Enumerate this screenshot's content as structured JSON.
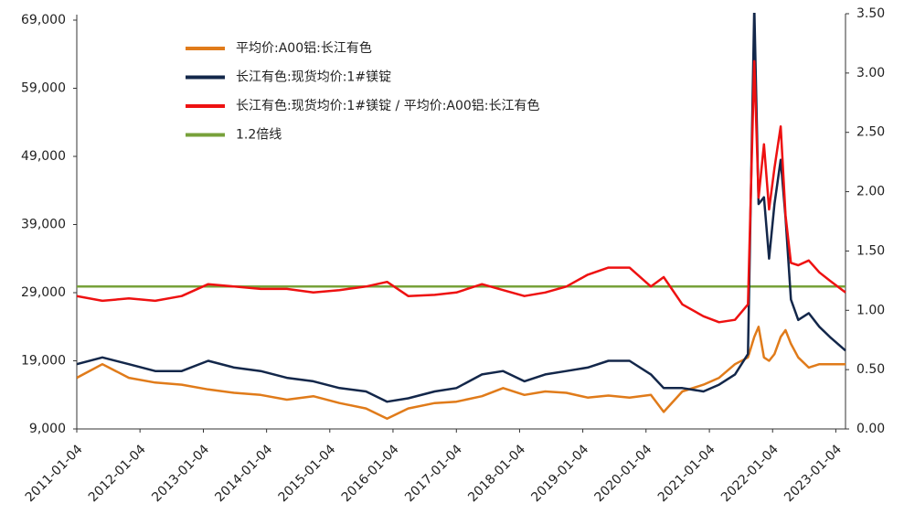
{
  "chart_data": {
    "type": "line",
    "x": [
      "2011-01-04",
      "2011-06-01",
      "2011-11-01",
      "2012-04-01",
      "2012-09-01",
      "2013-02-01",
      "2013-07-01",
      "2013-12-01",
      "2014-05-01",
      "2014-10-01",
      "2015-03-01",
      "2015-08-01",
      "2015-12-01",
      "2016-04-01",
      "2016-09-01",
      "2017-01-04",
      "2017-06-01",
      "2017-10-01",
      "2018-02-01",
      "2018-06-01",
      "2018-10-01",
      "2019-02-01",
      "2019-06-01",
      "2019-10-01",
      "2020-02-01",
      "2020-04-15",
      "2020-08-01",
      "2020-12-01",
      "2021-03-01",
      "2021-06-01",
      "2021-08-15",
      "2021-09-20",
      "2021-10-15",
      "2021-11-15",
      "2021-12-15",
      "2022-01-15",
      "2022-02-20",
      "2022-03-20",
      "2022-04-20",
      "2022-06-01",
      "2022-08-01",
      "2022-10-01",
      "2022-12-01",
      "2023-03-01"
    ],
    "xlim": [
      "2011-01-04",
      "2023-03-01"
    ],
    "xticks": [
      "2011-01-04",
      "2012-01-04",
      "2013-01-04",
      "2014-01-04",
      "2015-01-04",
      "2016-01-04",
      "2017-01-04",
      "2018-01-04",
      "2019-01-04",
      "2020-01-04",
      "2021-01-04",
      "2022-01-04",
      "2023-01-04"
    ],
    "ylim": [
      9000,
      69000
    ],
    "yticks": [
      {
        "value": 9000,
        "label": "9,000"
      },
      {
        "value": 19000,
        "label": "19,000"
      },
      {
        "value": 29000,
        "label": "29,000"
      },
      {
        "value": 39000,
        "label": "39,000"
      },
      {
        "value": 49000,
        "label": "49,000"
      },
      {
        "value": 59000,
        "label": "59,000"
      },
      {
        "value": 69000,
        "label": "69,000"
      }
    ],
    "y2lim": [
      0,
      3.5
    ],
    "y2ticks": [
      {
        "value": 0,
        "label": "0.00"
      },
      {
        "value": 0.5,
        "label": "0.50"
      },
      {
        "value": 1,
        "label": "1.00"
      },
      {
        "value": 1.5,
        "label": "1.50"
      },
      {
        "value": 2,
        "label": "2.00"
      },
      {
        "value": 2.5,
        "label": "2.50"
      },
      {
        "value": 3,
        "label": "3.00"
      },
      {
        "value": 3.5,
        "label": "3.50"
      }
    ],
    "legend": "upper left",
    "series": [
      {
        "name": "平均价:A00铝:长江有色",
        "color": "#e07b1a",
        "values": [
          16500,
          18500,
          16500,
          15800,
          15500,
          14800,
          14300,
          14000,
          13300,
          13800,
          12800,
          12000,
          10500,
          12000,
          12800,
          13000,
          13800,
          15000,
          14000,
          14500,
          14300,
          13600,
          13900,
          13600,
          14000,
          11500,
          14500,
          15500,
          16500,
          18500,
          19500,
          22500,
          24000,
          19500,
          19000,
          20000,
          22500,
          23500,
          21500,
          19500,
          18000,
          18500,
          18500,
          18500
        ]
      },
      {
        "name": "长江有色:现货均价:1#镁锭",
        "color": "#13274a",
        "values": [
          18500,
          19500,
          18500,
          17500,
          17500,
          19000,
          18000,
          17500,
          16500,
          16000,
          15000,
          14500,
          13000,
          13500,
          14500,
          15000,
          17000,
          17500,
          16000,
          17000,
          17500,
          18000,
          19000,
          19000,
          17000,
          15000,
          15000,
          14500,
          15500,
          17000,
          20000,
          71000,
          42000,
          43000,
          34000,
          42000,
          48500,
          40000,
          28000,
          25000,
          26000,
          24000,
          22500,
          20500
        ]
      },
      {
        "name": "长江有色:现货均价:1#镁锭 / 平均价:A00铝:长江有色",
        "color": "#ee1111",
        "axis": "y2",
        "values": [
          1.12,
          1.08,
          1.1,
          1.08,
          1.12,
          1.22,
          1.2,
          1.18,
          1.18,
          1.15,
          1.17,
          1.2,
          1.24,
          1.12,
          1.13,
          1.15,
          1.22,
          1.17,
          1.12,
          1.15,
          1.2,
          1.3,
          1.36,
          1.36,
          1.2,
          1.28,
          1.05,
          0.95,
          0.9,
          0.92,
          1.05,
          3.1,
          1.95,
          2.4,
          1.85,
          2.2,
          2.55,
          1.8,
          1.4,
          1.38,
          1.42,
          1.32,
          1.25,
          1.15
        ]
      },
      {
        "name": "1.2倍线",
        "color": "#77a13a",
        "axis": "y2",
        "values": [
          1.2,
          1.2,
          1.2,
          1.2,
          1.2,
          1.2,
          1.2,
          1.2,
          1.2,
          1.2,
          1.2,
          1.2,
          1.2,
          1.2,
          1.2,
          1.2,
          1.2,
          1.2,
          1.2,
          1.2,
          1.2,
          1.2,
          1.2,
          1.2,
          1.2,
          1.2,
          1.2,
          1.2,
          1.2,
          1.2,
          1.2,
          1.2,
          1.2,
          1.2,
          1.2,
          1.2,
          1.2,
          1.2,
          1.2,
          1.2,
          1.2,
          1.2,
          1.2,
          1.2
        ]
      }
    ]
  }
}
